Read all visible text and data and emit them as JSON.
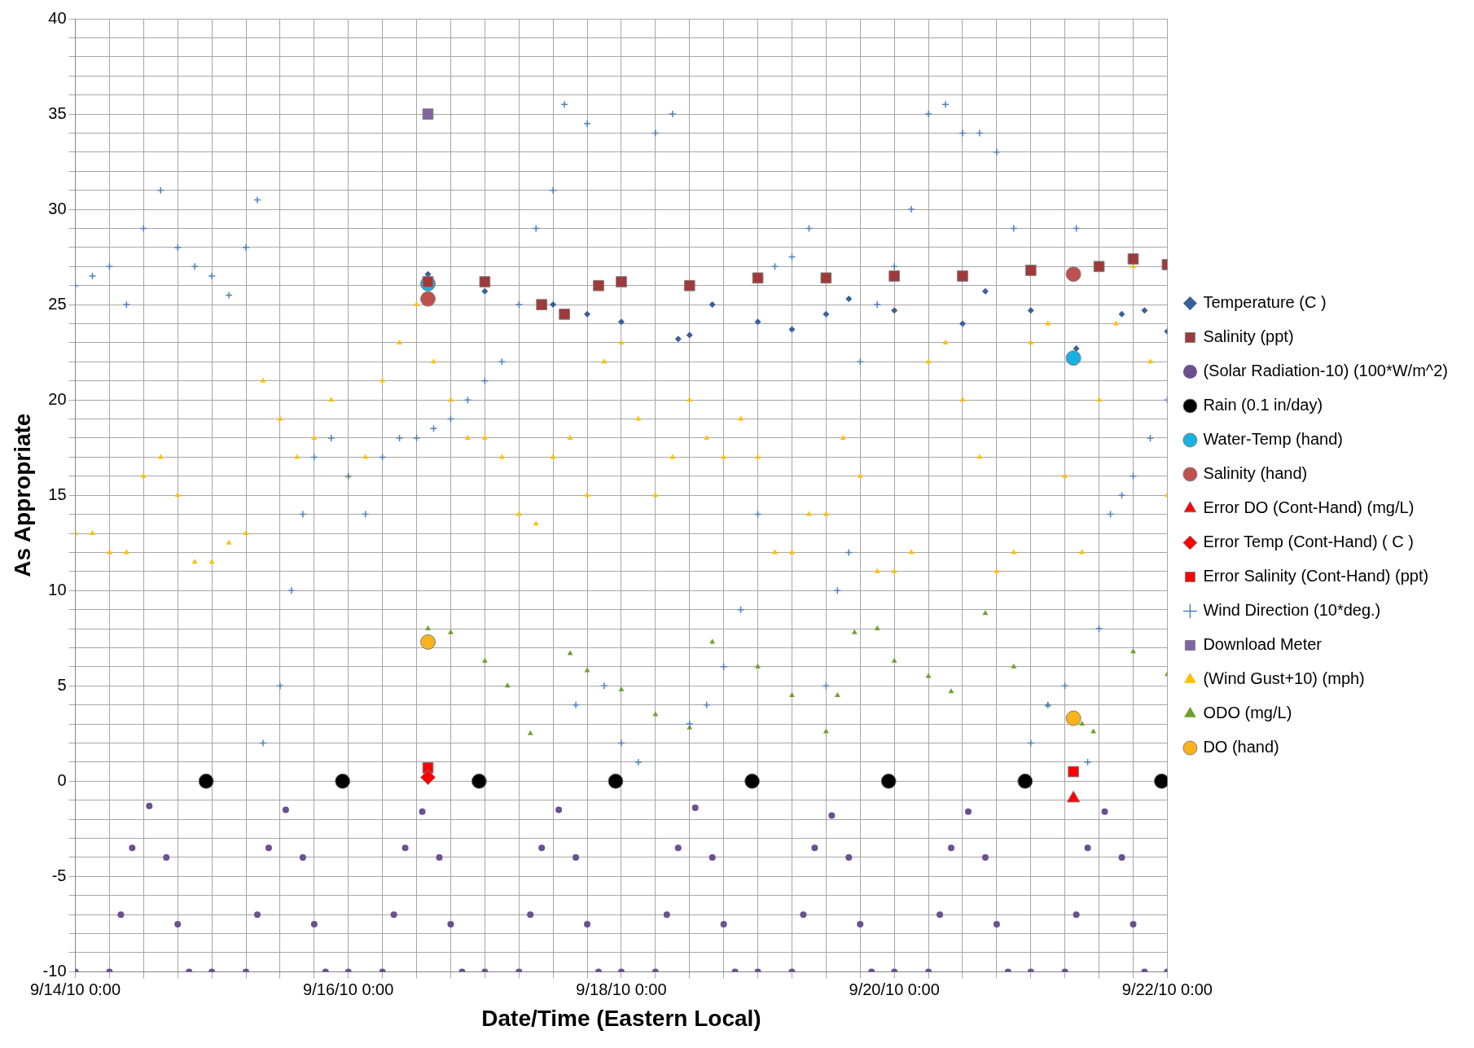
{
  "chart_data": {
    "type": "scatter",
    "xlabel": "Date/Time (Eastern Local)",
    "ylabel": "As Appropriate",
    "legend": "right",
    "grid": true,
    "xlim": [
      "--09-14T00:00",
      "--09-22T00:00"
    ],
    "xticks": [
      {
        "value": "--09-14T00:00",
        "label": "9/14/10 0:00"
      },
      {
        "value": "--09-14T06:00",
        "label": null
      },
      {
        "value": "--09-14T12:00",
        "label": null
      },
      {
        "value": "--09-14T18:00",
        "label": null
      },
      {
        "value": "--09-15T00:00",
        "label": null
      },
      {
        "value": "--09-15T06:00",
        "label": null
      },
      {
        "value": "--09-15T12:00",
        "label": null
      },
      {
        "value": "--09-15T18:00",
        "label": null
      },
      {
        "value": "--09-16T00:00",
        "label": "9/16/10 0:00"
      },
      {
        "value": "--09-16T06:00",
        "label": null
      },
      {
        "value": "--09-16T12:00",
        "label": null
      },
      {
        "value": "--09-16T18:00",
        "label": null
      },
      {
        "value": "--09-17T00:00",
        "label": null
      },
      {
        "value": "--09-17T06:00",
        "label": null
      },
      {
        "value": "--09-17T12:00",
        "label": null
      },
      {
        "value": "--09-17T18:00",
        "label": null
      },
      {
        "value": "--09-18T00:00",
        "label": "9/18/10 0:00"
      },
      {
        "value": "--09-18T06:00",
        "label": null
      },
      {
        "value": "--09-18T12:00",
        "label": null
      },
      {
        "value": "--09-18T18:00",
        "label": null
      },
      {
        "value": "--09-19T00:00",
        "label": null
      },
      {
        "value": "--09-19T06:00",
        "label": null
      },
      {
        "value": "--09-19T12:00",
        "label": null
      },
      {
        "value": "--09-19T18:00",
        "label": null
      },
      {
        "value": "--09-20T00:00",
        "label": "9/20/10 0:00"
      },
      {
        "value": "--09-20T06:00",
        "label": null
      },
      {
        "value": "--09-20T12:00",
        "label": null
      },
      {
        "value": "--09-20T18:00",
        "label": null
      },
      {
        "value": "--09-21T00:00",
        "label": null
      },
      {
        "value": "--09-21T06:00",
        "label": null
      },
      {
        "value": "--09-21T12:00",
        "label": null
      },
      {
        "value": "--09-21T18:00",
        "label": null
      },
      {
        "value": "--09-22T00:00",
        "label": "9/22/10 0:00"
      }
    ],
    "ylim": [
      -10,
      40
    ],
    "yticks": [
      -10,
      {
        "value": -9,
        "label": null
      },
      {
        "value": -8,
        "label": null
      },
      {
        "value": -7,
        "label": null
      },
      {
        "value": -6,
        "label": null
      },
      -5,
      {
        "value": -4,
        "label": null
      },
      {
        "value": -3,
        "label": null
      },
      {
        "value": -2,
        "label": null
      },
      {
        "value": -1,
        "label": null
      },
      0,
      {
        "value": 1,
        "label": null
      },
      {
        "value": 2,
        "label": null
      },
      {
        "value": 3,
        "label": null
      },
      {
        "value": 4,
        "label": null
      },
      5,
      {
        "value": 6,
        "label": null
      },
      {
        "value": 7,
        "label": null
      },
      {
        "value": 8,
        "label": null
      },
      {
        "value": 9,
        "label": null
      },
      10,
      {
        "value": 11,
        "label": null
      },
      {
        "value": 12,
        "label": null
      },
      {
        "value": 13,
        "label": null
      },
      {
        "value": 14,
        "label": null
      },
      15,
      {
        "value": 16,
        "label": null
      },
      {
        "value": 17,
        "label": null
      },
      {
        "value": 18,
        "label": null
      },
      {
        "value": 19,
        "label": null
      },
      20,
      {
        "value": 21,
        "label": null
      },
      {
        "value": 22,
        "label": null
      },
      {
        "value": 23,
        "label": null
      },
      {
        "value": 24,
        "label": null
      },
      25,
      {
        "value": 26,
        "label": null
      },
      {
        "value": 27,
        "label": null
      },
      {
        "value": 28,
        "label": null
      },
      {
        "value": 29,
        "label": null
      },
      30,
      {
        "value": 31,
        "label": null
      },
      {
        "value": 32,
        "label": null
      },
      {
        "value": 33,
        "label": null
      },
      {
        "value": 34,
        "label": null
      },
      35,
      {
        "value": 36,
        "label": null
      },
      {
        "value": 37,
        "label": null
      },
      {
        "value": 38,
        "label": null
      },
      {
        "value": 39,
        "label": null
      },
      40
    ],
    "series": [
      {
        "name": "Temperature (C )",
        "color": "#3a5f9a",
        "marker": "diamond",
        "x": [
          "--09-16T14:00",
          "--09-17T00:00",
          "--09-17T12:00",
          "--09-17T18:00",
          "--09-18T00:00",
          "--09-18T10:00",
          "--09-18T12:00",
          "--09-18T16:00",
          "--09-19T00:00",
          "--09-19T06:00",
          "--09-19T12:00",
          "--09-19T16:00",
          "--09-20T00:00",
          "--09-20T12:00",
          "--09-20T16:00",
          "--09-21T00:00",
          "--09-21T08:00",
          "--09-21T16:00",
          "--09-21T20:00",
          "--09-22T00:00"
        ],
        "values": [
          26.6,
          25.7,
          25.0,
          24.5,
          24.1,
          23.2,
          23.4,
          25.0,
          24.1,
          23.7,
          24.5,
          25.3,
          24.7,
          24.0,
          25.7,
          24.7,
          22.7,
          24.5,
          24.7,
          23.6
        ]
      },
      {
        "name": "Salinity (ppt)",
        "color": "#a0393a",
        "marker": "square",
        "x": [
          "--09-16T14:00",
          "--09-17T00:00",
          "--09-17T10:00",
          "--09-17T14:00",
          "--09-17T20:00",
          "--09-18T00:00",
          "--09-18T12:00",
          "--09-19T00:00",
          "--09-19T12:00",
          "--09-20T00:00",
          "--09-20T12:00",
          "--09-21T00:00",
          "--09-21T12:00",
          "--09-21T18:00",
          "--09-22T00:00"
        ],
        "values": [
          26.2,
          26.2,
          25.0,
          24.5,
          26.0,
          26.2,
          26.0,
          26.4,
          26.4,
          26.5,
          26.5,
          26.8,
          27.0,
          27.4,
          27.1
        ]
      },
      {
        "name": "(Solar Radiation-10) (100*W/m^2)",
        "color": "#6b4f8f",
        "marker": "circle",
        "x": [
          "--09-14T00:00",
          "--09-14T06:00",
          "--09-14T08:00",
          "--09-14T10:00",
          "--09-14T13:00",
          "--09-14T16:00",
          "--09-14T18:00",
          "--09-14T20:00",
          "--09-15T00:00",
          "--09-15T06:00",
          "--09-15T08:00",
          "--09-15T10:00",
          "--09-15T13:00",
          "--09-15T16:00",
          "--09-15T18:00",
          "--09-15T20:00",
          "--09-16T00:00",
          "--09-16T06:00",
          "--09-16T08:00",
          "--09-16T10:00",
          "--09-16T13:00",
          "--09-16T16:00",
          "--09-16T18:00",
          "--09-16T20:00",
          "--09-17T00:00",
          "--09-17T06:00",
          "--09-17T08:00",
          "--09-17T10:00",
          "--09-17T13:00",
          "--09-17T16:00",
          "--09-17T18:00",
          "--09-17T20:00",
          "--09-18T00:00",
          "--09-18T06:00",
          "--09-18T08:00",
          "--09-18T10:00",
          "--09-18T13:00",
          "--09-18T16:00",
          "--09-18T18:00",
          "--09-18T20:00",
          "--09-19T00:00",
          "--09-19T06:00",
          "--09-19T08:00",
          "--09-19T10:00",
          "--09-19T13:00",
          "--09-19T16:00",
          "--09-19T18:00",
          "--09-19T20:00",
          "--09-20T00:00",
          "--09-20T06:00",
          "--09-20T08:00",
          "--09-20T10:00",
          "--09-20T13:00",
          "--09-20T16:00",
          "--09-20T18:00",
          "--09-20T20:00",
          "--09-21T00:00",
          "--09-21T06:00",
          "--09-21T08:00",
          "--09-21T10:00",
          "--09-21T13:00",
          "--09-21T16:00",
          "--09-21T18:00",
          "--09-21T20:00",
          "--09-22T00:00"
        ],
        "values": [
          -10,
          -10,
          -7,
          -3.5,
          -1.3,
          -4,
          -7.5,
          -10,
          -10,
          -10,
          -7,
          -3.5,
          -1.5,
          -4,
          -7.5,
          -10,
          -10,
          -10,
          -7,
          -3.5,
          -1.6,
          -4,
          -7.5,
          -10,
          -10,
          -10,
          -7,
          -3.5,
          -1.5,
          -4,
          -7.5,
          -10,
          -10,
          -10,
          -7,
          -3.5,
          -1.4,
          -4,
          -7.5,
          -10,
          -10,
          -10,
          -7,
          -3.5,
          -1.8,
          -4,
          -7.5,
          -10,
          -10,
          -10,
          -7,
          -3.5,
          -1.6,
          -4,
          -7.5,
          -10,
          -10,
          -10,
          -7,
          -3.5,
          -1.6,
          -4,
          -7.5,
          -10,
          -10
        ]
      },
      {
        "name": "Rain (0.1 in/day)",
        "color": "#000000",
        "marker": "circle",
        "x": [
          "--09-14T23:00",
          "--09-15T23:00",
          "--09-16T23:00",
          "--09-17T23:00",
          "--09-18T23:00",
          "--09-19T23:00",
          "--09-20T23:00",
          "--09-21T23:00"
        ],
        "values": [
          0,
          0,
          0,
          0,
          0,
          0,
          0,
          0
        ]
      },
      {
        "name": "Water-Temp (hand)",
        "color": "#1ab0e0",
        "marker": "circle",
        "x": [
          "--09-16T14:00",
          "--09-21T07:30"
        ],
        "values": [
          26.1,
          22.2
        ]
      },
      {
        "name": "Salinity (hand)",
        "color": "#c0504d",
        "marker": "circle",
        "x": [
          "--09-16T14:00",
          "--09-21T07:30"
        ],
        "values": [
          25.3,
          26.6
        ]
      },
      {
        "name": "Error DO (Cont-Hand) (mg/L)",
        "color": "#ff0000",
        "marker": "triangle",
        "x": [
          "--09-21T07:30"
        ],
        "values": [
          -0.9
        ]
      },
      {
        "name": "Error Temp (Cont-Hand) ( C )",
        "color": "#ff0000",
        "marker": "diamond",
        "x": [
          "--09-16T14:00"
        ],
        "values": [
          0.2
        ]
      },
      {
        "name": "Error Salinity (Cont-Hand) (ppt)",
        "color": "#ff0000",
        "marker": "square",
        "x": [
          "--09-16T14:00",
          "--09-21T07:30"
        ],
        "values": [
          0.7,
          0.5
        ]
      },
      {
        "name": "Wind Direction (10*deg.)",
        "color": "#4f81bd",
        "marker": "cross",
        "x": [
          "--09-14T00:00",
          "--09-14T03:00",
          "--09-14T06:00",
          "--09-14T09:00",
          "--09-14T12:00",
          "--09-14T15:00",
          "--09-14T18:00",
          "--09-14T21:00",
          "--09-15T00:00",
          "--09-15T03:00",
          "--09-15T06:00",
          "--09-15T08:00",
          "--09-15T09:00",
          "--09-15T12:00",
          "--09-15T14:00",
          "--09-15T16:00",
          "--09-15T18:00",
          "--09-15T21:00",
          "--09-16T00:00",
          "--09-16T03:00",
          "--09-16T06:00",
          "--09-16T09:00",
          "--09-16T12:00",
          "--09-16T15:00",
          "--09-16T18:00",
          "--09-16T21:00",
          "--09-17T00:00",
          "--09-17T03:00",
          "--09-17T06:00",
          "--09-17T09:00",
          "--09-17T12:00",
          "--09-17T14:00",
          "--09-17T16:00",
          "--09-17T18:00",
          "--09-17T21:00",
          "--09-18T00:00",
          "--09-18T03:00",
          "--09-18T06:00",
          "--09-18T09:00",
          "--09-18T12:00",
          "--09-18T15:00",
          "--09-18T18:00",
          "--09-18T21:00",
          "--09-19T00:00",
          "--09-19T03:00",
          "--09-19T06:00",
          "--09-19T09:00",
          "--09-19T12:00",
          "--09-19T14:00",
          "--09-19T16:00",
          "--09-19T18:00",
          "--09-19T21:00",
          "--09-20T00:00",
          "--09-20T03:00",
          "--09-20T06:00",
          "--09-20T09:00",
          "--09-20T12:00",
          "--09-20T15:00",
          "--09-20T18:00",
          "--09-20T21:00",
          "--09-21T00:00",
          "--09-21T03:00",
          "--09-21T06:00",
          "--09-21T08:00",
          "--09-21T10:00",
          "--09-21T12:00",
          "--09-21T14:00",
          "--09-21T16:00",
          "--09-21T18:00",
          "--09-21T21:00",
          "--09-22T00:00"
        ],
        "values": [
          26,
          26.5,
          27,
          25,
          29,
          31,
          28,
          27,
          26.5,
          25.5,
          28,
          30.5,
          2,
          5,
          10,
          14,
          17,
          18,
          16,
          14,
          17,
          18,
          18,
          18.5,
          19,
          20,
          21,
          22,
          25,
          29,
          31,
          35.5,
          4,
          34.5,
          5,
          2,
          1,
          34,
          35,
          3,
          4,
          6,
          9,
          14,
          27,
          27.5,
          29,
          5,
          10,
          12,
          22,
          25,
          27,
          30,
          35,
          35.5,
          34,
          34,
          33,
          29,
          2,
          4,
          5,
          29,
          1,
          8,
          14,
          15,
          16,
          18,
          20
        ]
      },
      {
        "name": "Download Meter",
        "color": "#8064a2",
        "marker": "square",
        "x": [
          "--09-16T14:00"
        ],
        "values": [
          35
        ]
      },
      {
        "name": "(Wind Gust+10) (mph)",
        "color": "#ffc000",
        "marker": "triangle",
        "x": [
          "--09-14T00:00",
          "--09-14T03:00",
          "--09-14T06:00",
          "--09-14T09:00",
          "--09-14T12:00",
          "--09-14T15:00",
          "--09-14T18:00",
          "--09-14T21:00",
          "--09-15T00:00",
          "--09-15T03:00",
          "--09-15T06:00",
          "--09-15T09:00",
          "--09-15T12:00",
          "--09-15T15:00",
          "--09-15T18:00",
          "--09-15T21:00",
          "--09-16T00:00",
          "--09-16T03:00",
          "--09-16T06:00",
          "--09-16T09:00",
          "--09-16T12:00",
          "--09-16T15:00",
          "--09-16T18:00",
          "--09-16T21:00",
          "--09-17T00:00",
          "--09-17T03:00",
          "--09-17T06:00",
          "--09-17T09:00",
          "--09-17T12:00",
          "--09-17T15:00",
          "--09-17T18:00",
          "--09-17T21:00",
          "--09-18T00:00",
          "--09-18T03:00",
          "--09-18T06:00",
          "--09-18T09:00",
          "--09-18T12:00",
          "--09-18T15:00",
          "--09-18T18:00",
          "--09-18T21:00",
          "--09-19T00:00",
          "--09-19T03:00",
          "--09-19T06:00",
          "--09-19T09:00",
          "--09-19T12:00",
          "--09-19T15:00",
          "--09-19T18:00",
          "--09-19T21:00",
          "--09-20T00:00",
          "--09-20T03:00",
          "--09-20T06:00",
          "--09-20T09:00",
          "--09-20T12:00",
          "--09-20T15:00",
          "--09-20T18:00",
          "--09-20T21:00",
          "--09-21T00:00",
          "--09-21T03:00",
          "--09-21T06:00",
          "--09-21T09:00",
          "--09-21T12:00",
          "--09-21T15:00",
          "--09-21T18:00",
          "--09-21T21:00",
          "--09-22T00:00"
        ],
        "values": [
          13,
          13,
          12,
          12,
          16,
          17,
          15,
          11.5,
          11.5,
          12.5,
          13,
          21,
          19,
          17,
          18,
          20,
          16,
          17,
          21,
          23,
          25,
          22,
          20,
          18,
          18,
          17,
          14,
          13.5,
          17,
          18,
          15,
          22,
          23,
          19,
          15,
          17,
          20,
          18,
          17,
          19,
          17,
          12,
          12,
          14,
          14,
          18,
          16,
          11,
          11,
          12,
          22,
          23,
          20,
          17,
          11,
          12,
          23,
          24,
          16,
          12,
          20,
          24,
          27,
          22,
          15
        ]
      },
      {
        "name": "ODO (mg/L)",
        "color": "#70a030",
        "marker": "triangle",
        "x": [
          "--09-16T14:00",
          "--09-16T18:00",
          "--09-17T00:00",
          "--09-17T04:00",
          "--09-17T08:00",
          "--09-17T15:00",
          "--09-17T18:00",
          "--09-18T00:00",
          "--09-18T06:00",
          "--09-18T12:00",
          "--09-18T16:00",
          "--09-19T00:00",
          "--09-19T06:00",
          "--09-19T12:00",
          "--09-19T14:00",
          "--09-19T17:00",
          "--09-19T21:00",
          "--09-20T00:00",
          "--09-20T06:00",
          "--09-20T10:00",
          "--09-20T16:00",
          "--09-20T21:00",
          "--09-21T03:00",
          "--09-21T09:00",
          "--09-21T11:00",
          "--09-21T18:00",
          "--09-22T00:00"
        ],
        "values": [
          8.0,
          7.8,
          6.3,
          5,
          2.5,
          6.7,
          5.8,
          4.8,
          3.5,
          2.8,
          7.3,
          6,
          4.5,
          2.6,
          4.5,
          7.8,
          8.0,
          6.3,
          5.5,
          4.7,
          8.8,
          6,
          4,
          3,
          2.6,
          6.8,
          5.6
        ]
      },
      {
        "name": "DO (hand)",
        "color": "#f9b21b",
        "marker": "circle",
        "x": [
          "--09-16T14:00",
          "--09-21T07:30"
        ],
        "values": [
          7.3,
          3.3
        ]
      }
    ]
  }
}
